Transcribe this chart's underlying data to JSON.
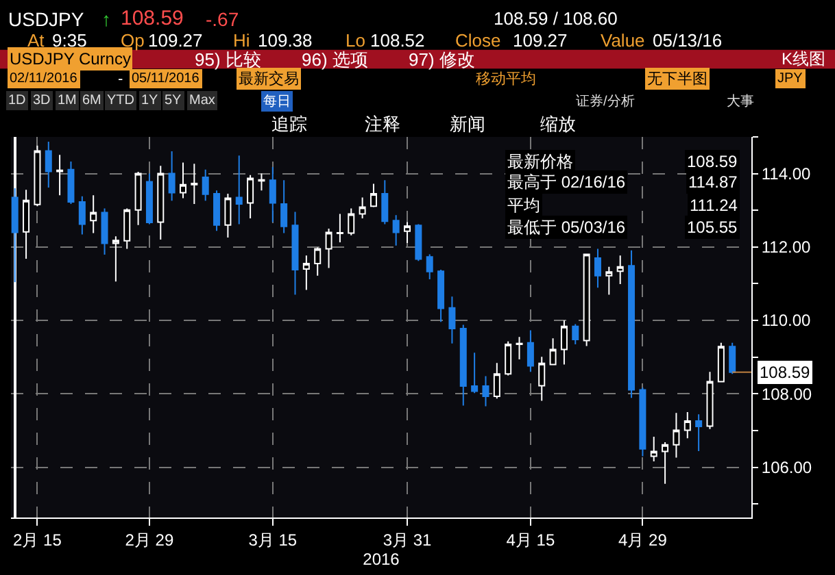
{
  "chart_data": {
    "type": "candlestick",
    "categories": [
      null,
      null,
      "2月 15",
      null,
      null,
      null,
      null,
      null,
      null,
      null,
      null,
      null,
      "2月 29",
      null,
      null,
      null,
      null,
      null,
      null,
      null,
      null,
      null,
      null,
      "3月 15",
      null,
      null,
      null,
      null,
      null,
      null,
      null,
      null,
      null,
      null,
      null,
      "3月 31",
      null,
      null,
      null,
      null,
      null,
      null,
      null,
      null,
      null,
      null,
      "4月 15",
      null,
      null,
      null,
      null,
      null,
      null,
      null,
      null,
      null,
      "4月 29",
      null,
      null,
      null,
      null,
      null,
      null,
      null,
      null
    ],
    "ohlc": [
      [
        113.35,
        113.6,
        111.04,
        112.4
      ],
      [
        112.41,
        113.56,
        111.68,
        113.27
      ],
      [
        113.16,
        114.76,
        113.11,
        114.62
      ],
      [
        114.62,
        114.87,
        113.62,
        114.06
      ],
      [
        114.06,
        114.51,
        113.41,
        114.09
      ],
      [
        114.11,
        114.33,
        113.17,
        113.23
      ],
      [
        113.23,
        113.38,
        112.34,
        112.62
      ],
      [
        112.72,
        113.41,
        112.38,
        112.94
      ],
      [
        112.94,
        113.05,
        111.79,
        112.1
      ],
      [
        112.1,
        112.29,
        111.06,
        112.18
      ],
      [
        112.17,
        113.05,
        111.95,
        113.01
      ],
      [
        113.01,
        114.05,
        112.6,
        114.0
      ],
      [
        113.78,
        114.0,
        112.62,
        112.67
      ],
      [
        112.68,
        114.21,
        112.2,
        114.0
      ],
      [
        114.0,
        114.61,
        113.26,
        113.48
      ],
      [
        113.48,
        114.3,
        113.33,
        113.7
      ],
      [
        113.7,
        114.27,
        113.17,
        113.73
      ],
      [
        113.9,
        114.11,
        113.26,
        113.44
      ],
      [
        113.45,
        113.54,
        112.44,
        112.6
      ],
      [
        112.6,
        113.45,
        112.26,
        113.33
      ],
      [
        113.35,
        114.49,
        112.62,
        113.17
      ],
      [
        113.2,
        113.96,
        112.78,
        113.87
      ],
      [
        113.8,
        114.0,
        113.54,
        113.83
      ],
      [
        113.82,
        114.18,
        112.68,
        113.2
      ],
      [
        113.17,
        113.82,
        112.38,
        112.56
      ],
      [
        112.59,
        112.96,
        110.7,
        111.38
      ],
      [
        111.4,
        111.77,
        110.83,
        111.55
      ],
      [
        111.55,
        111.99,
        111.22,
        111.95
      ],
      [
        111.95,
        112.5,
        111.43,
        112.4
      ],
      [
        112.37,
        112.9,
        112.13,
        112.39
      ],
      [
        112.38,
        113.05,
        112.32,
        112.9
      ],
      [
        112.9,
        113.35,
        112.78,
        113.09
      ],
      [
        113.11,
        113.72,
        113.09,
        113.45
      ],
      [
        113.45,
        113.82,
        112.62,
        112.7
      ],
      [
        112.72,
        112.87,
        112.04,
        112.4
      ],
      [
        112.43,
        112.68,
        112.11,
        112.57
      ],
      [
        112.59,
        112.62,
        111.62,
        111.67
      ],
      [
        111.73,
        111.8,
        111.12,
        111.33
      ],
      [
        111.34,
        111.38,
        109.96,
        110.33
      ],
      [
        110.34,
        110.65,
        109.37,
        109.78
      ],
      [
        109.78,
        109.88,
        107.68,
        108.21
      ],
      [
        108.21,
        109.12,
        108.02,
        108.07
      ],
      [
        108.21,
        108.48,
        107.66,
        107.93
      ],
      [
        107.93,
        108.84,
        107.87,
        108.54
      ],
      [
        108.54,
        109.43,
        108.5,
        109.35
      ],
      [
        109.35,
        109.55,
        108.94,
        109.37
      ],
      [
        109.39,
        109.73,
        108.6,
        108.76
      ],
      [
        108.22,
        109.01,
        107.81,
        108.83
      ],
      [
        108.8,
        109.51,
        108.79,
        109.21
      ],
      [
        109.21,
        110.0,
        108.8,
        109.84
      ],
      [
        109.84,
        109.9,
        109.35,
        109.48
      ],
      [
        109.45,
        111.82,
        109.3,
        111.8
      ],
      [
        111.7,
        111.95,
        110.89,
        111.22
      ],
      [
        111.22,
        111.46,
        110.7,
        111.32
      ],
      [
        111.34,
        111.77,
        110.99,
        111.46
      ],
      [
        111.49,
        111.91,
        107.89,
        108.11
      ],
      [
        108.11,
        108.17,
        106.3,
        106.5
      ],
      [
        106.3,
        106.83,
        106.16,
        106.43
      ],
      [
        106.43,
        106.68,
        105.55,
        106.61
      ],
      [
        106.61,
        107.48,
        106.26,
        107.01
      ],
      [
        107.01,
        107.5,
        106.79,
        107.26
      ],
      [
        107.26,
        107.44,
        106.44,
        107.11
      ],
      [
        107.12,
        108.6,
        107.04,
        108.33
      ],
      [
        108.33,
        109.39,
        108.33,
        109.29
      ],
      [
        109.29,
        109.39,
        108.54,
        108.59
      ]
    ],
    "colors": [
      "#1e7ee6",
      "#ffffff",
      "#ffffff",
      "#1e7ee6",
      "#ffffff",
      "#1e7ee6",
      "#1e7ee6",
      "#ffffff",
      "#1e7ee6",
      "#ffffff",
      "#ffffff",
      "#ffffff",
      "#1e7ee6",
      "#ffffff",
      "#1e7ee6",
      "#ffffff",
      "#ffffff",
      "#1e7ee6",
      "#1e7ee6",
      "#ffffff",
      "#1e7ee6",
      "#ffffff",
      "#ffffff",
      "#1e7ee6",
      "#1e7ee6",
      "#1e7ee6",
      "#ffffff",
      "#ffffff",
      "#ffffff",
      "#ffffff",
      "#ffffff",
      "#ffffff",
      "#ffffff",
      "#1e7ee6",
      "#1e7ee6",
      "#ffffff",
      "#1e7ee6",
      "#1e7ee6",
      "#1e7ee6",
      "#1e7ee6",
      "#1e7ee6",
      "#1e7ee6",
      "#1e7ee6",
      "#ffffff",
      "#ffffff",
      "#ffffff",
      "#1e7ee6",
      "#ffffff",
      "#ffffff",
      "#ffffff",
      "#1e7ee6",
      "#ffffff",
      "#1e7ee6",
      "#ffffff",
      "#ffffff",
      "#1e7ee6",
      "#1e7ee6",
      "#ffffff",
      "#ffffff",
      "#ffffff",
      "#ffffff",
      "#1e7ee6",
      "#ffffff",
      "#ffffff",
      "#1e7ee6"
    ],
    "xlabel": "2016",
    "ylim": [
      104.63,
      115.0
    ],
    "yticks": [
      {
        "value": 105,
        "label": null
      },
      {
        "value": 106,
        "label": "106.00"
      },
      {
        "value": 107,
        "label": null
      },
      {
        "value": 108,
        "label": "108.00"
      },
      {
        "value": 109,
        "label": null
      },
      {
        "value": 110,
        "label": "110.00"
      },
      {
        "value": 111,
        "label": null
      },
      {
        "value": 112,
        "label": "112.00"
      },
      {
        "value": 113,
        "label": null
      },
      {
        "value": 114,
        "label": "114.00"
      },
      {
        "value": 115,
        "label": null
      }
    ],
    "grid": true,
    "annotations": [
      "USDJPY",
      "↑",
      "108.59",
      "-.67",
      "108.59 / 108.60",
      "At",
      "9:35",
      "Op",
      "109.27",
      "Hi",
      "109.38",
      "Lo",
      "108.52",
      "Close",
      "109.27",
      "Value",
      "05/13/16",
      "USDJPY Curncy",
      "95) 比较",
      "96) 选项",
      "97) 修改",
      "K线图",
      "02/11/2016",
      "-",
      "05/11/2016",
      "最新交易",
      "移动平均",
      "无下半图",
      "JPY",
      "1D",
      "3D",
      "1M",
      "6M",
      "YTD",
      "1Y",
      "5Y",
      "Max",
      "每日",
      "证券/分析",
      "大事",
      "追踪",
      "注释",
      "新闻",
      "缩放",
      "最新价格",
      "108.59",
      "最高于 02/16/16",
      "114.87",
      "平均",
      "111.24",
      "最低于 05/03/16",
      "105.55",
      "108.59"
    ]
  }
}
